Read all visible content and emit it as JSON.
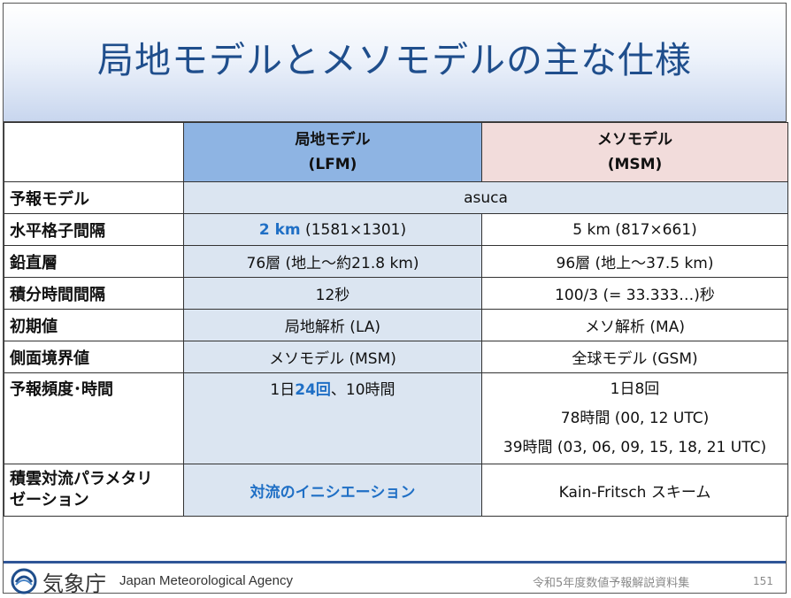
{
  "title": "局地モデルとメソモデルの主な仕様",
  "header": {
    "lfm_line1": "局地モデル",
    "lfm_line2": "(LFM)",
    "msm_line1": "メソモデル",
    "msm_line2": "(MSM)"
  },
  "rows": {
    "model": {
      "label": "予報モデル",
      "shared": "asuca"
    },
    "hgrid": {
      "label": "水平格子間隔",
      "lfm_emph": "2 km",
      "lfm_rest": " (1581×1301)",
      "msm": "5 km (817×661)"
    },
    "vlayer": {
      "label": "鉛直層",
      "lfm": "76層 (地上〜約21.8 km)",
      "msm": "96層 (地上〜37.5 km)"
    },
    "tstep": {
      "label": "積分時間間隔",
      "lfm": "12秒",
      "msm": "100/3 (= 33.333…)秒"
    },
    "init": {
      "label": "初期値",
      "lfm": "局地解析 (LA)",
      "msm": "メソ解析 (MA)"
    },
    "lbc": {
      "label": "側面境界値",
      "lfm": "メソモデル (MSM)",
      "msm": "全球モデル (GSM)"
    },
    "freq": {
      "label": "予報頻度･時間",
      "lfm_pre": "1日",
      "lfm_emph": "24回",
      "lfm_post": "、10時間",
      "msm_line1": "1日8回",
      "msm_line2": "78時間 (00, 12 UTC)",
      "msm_line3": "39時間 (03, 06, 09, 15, 18, 21 UTC)"
    },
    "conv": {
      "label_line1": "積雲対流パラメタリ",
      "label_line2": "ゼーション",
      "lfm": "対流のイニシエーション",
      "msm": "Kain-Fritsch スキーム"
    }
  },
  "footer": {
    "agency_jp": "気象庁",
    "agency_en": "Japan Meteorological Agency",
    "source": "令和5年度数値予報解説資料集",
    "page": "151"
  },
  "colors": {
    "title": "#1f4e8c",
    "lfm_header": "#8eb4e3",
    "msm_header": "#f2dcdb",
    "lfm_cell": "#dbe5f1",
    "emphasis": "#1f6fc5"
  },
  "icons": {
    "logo": "jma-logo-icon"
  }
}
